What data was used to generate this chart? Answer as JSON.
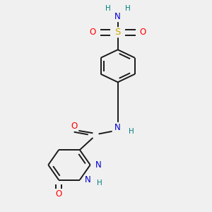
{
  "background_color": "#f0f0f0",
  "atom_colors": {
    "C": "#000000",
    "N": "#0000cd",
    "O": "#ff0000",
    "S": "#ccaa00",
    "H": "#008080"
  },
  "bond_color": "#1a1a1a",
  "bond_width": 1.4,
  "figsize": [
    3.0,
    3.0
  ],
  "dpi": 100
}
